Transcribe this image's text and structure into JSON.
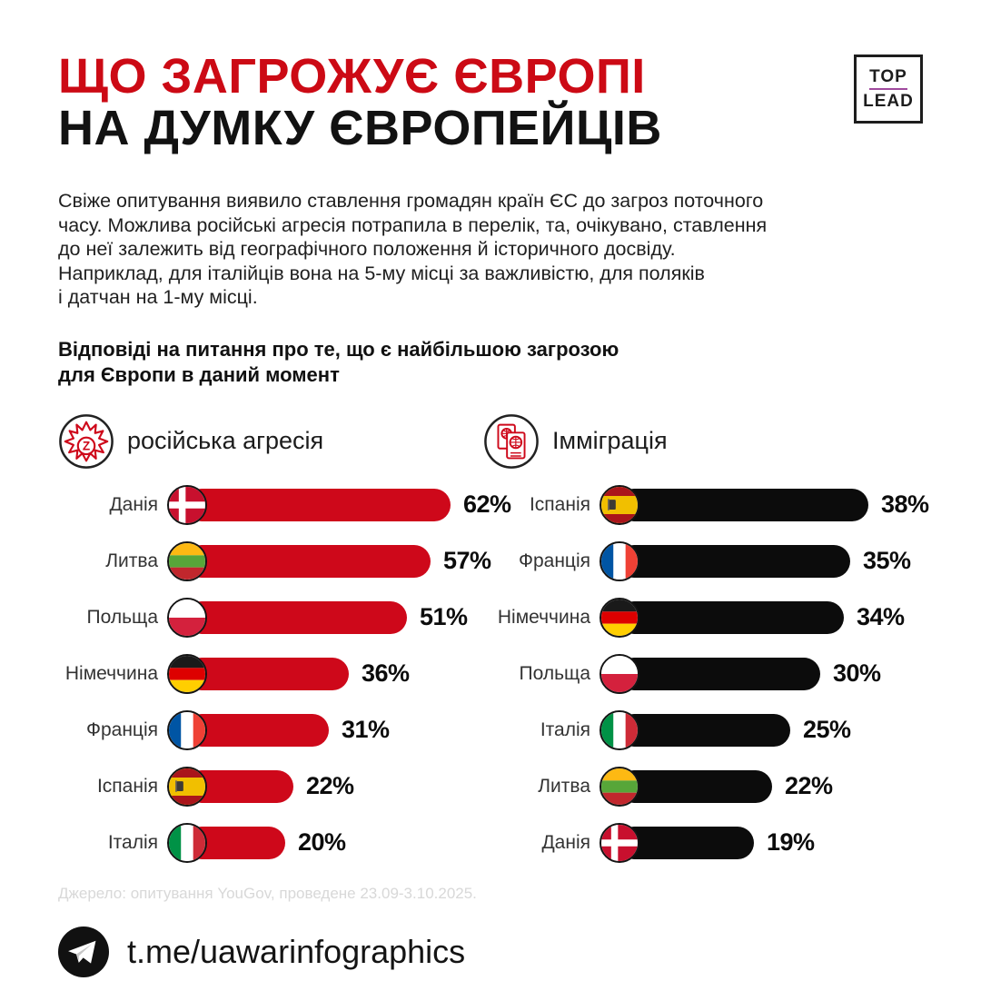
{
  "header": {
    "title_line1": "ЩО ЗАГРОЖУЄ ЄВРОПІ",
    "title_line2": "НА ДУМКУ ЄВРОПЕЙЦІВ",
    "logo": {
      "top": "TOP",
      "lead": "LEAD",
      "divider_color": "#a04a9e"
    }
  },
  "intro": "Свіже опитування виявило ставлення громадян країн ЄС до загроз поточного\nчасу. Можлива російські агресія потрапила в перелік, та, очікувано, ставлення\nдо неї залежить від географічного положення й історичного досвіду.\nНаприклад, для італійців вона на 5-му місці за важливістю, для поляків\nі датчан на 1-му місці.",
  "subtitle": "Відповіді на питання про те, що є найбільшою загрозою\nдля Європи в даний момент",
  "colors": {
    "accent_red": "#cc0a15",
    "bar_red": "#ce081a",
    "bar_black": "#0c0c0c"
  },
  "chart_data": [
    {
      "type": "bar",
      "id": "russian-aggression",
      "title": "російська агресія",
      "icon": "z-explosion-icon",
      "bar_color": "#ce081a",
      "unit": "%",
      "categories": [
        "Данія",
        "Литва",
        "Польща",
        "Німеччина",
        "Франція",
        "Іспанія",
        "Італія"
      ],
      "flags": [
        "dk",
        "lt",
        "pl",
        "de",
        "fr",
        "es",
        "it"
      ],
      "values": [
        62,
        57,
        51,
        36,
        31,
        22,
        20
      ],
      "xlim": [
        0,
        62
      ]
    },
    {
      "type": "bar",
      "id": "immigration",
      "title": "Імміграція",
      "icon": "passports-icon",
      "bar_color": "#0c0c0c",
      "unit": "%",
      "categories": [
        "Іспанія",
        "Франція",
        "Німеччина",
        "Польща",
        "Італія",
        "Литва",
        "Данія"
      ],
      "flags": [
        "es",
        "fr",
        "de",
        "pl",
        "it",
        "lt",
        "dk"
      ],
      "values": [
        38,
        35,
        34,
        30,
        25,
        22,
        19
      ],
      "xlim": [
        0,
        38
      ]
    }
  ],
  "source": "Джерело: опитування YouGov, проведене 23.09-3.10.2025.",
  "footer": {
    "icon": "telegram-icon",
    "handle": "t.me/uawarinfographics"
  }
}
